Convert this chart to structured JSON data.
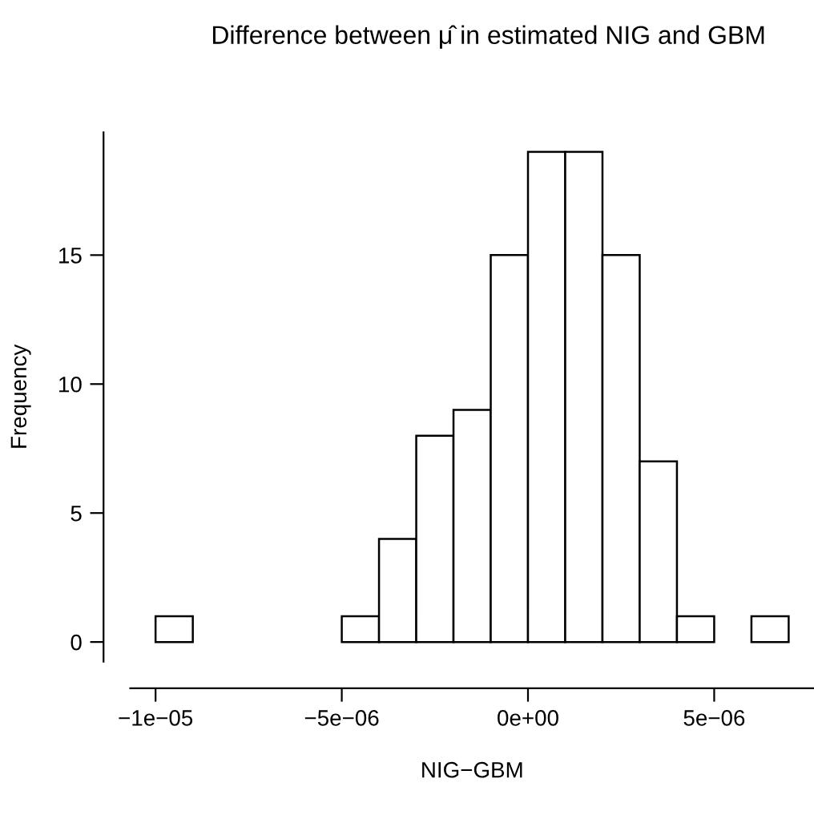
{
  "chart_data": {
    "type": "histogram",
    "title": "Difference between μ̂ in estimated NIG and GBM",
    "xlabel": "NIG−GBM",
    "ylabel": "Frequency",
    "bins": [
      -1e-05,
      -9e-06,
      -8e-06,
      -7e-06,
      -6e-06,
      -5e-06,
      -4e-06,
      -3e-06,
      -2e-06,
      -1e-06,
      0,
      1e-06,
      2e-06,
      3e-06,
      4e-06,
      5e-06,
      6e-06,
      7e-06
    ],
    "values": [
      1,
      0,
      0,
      0,
      0,
      1,
      4,
      8,
      9,
      15,
      19,
      19,
      15,
      7,
      1,
      0,
      1
    ],
    "color": "#ffffff",
    "xlim": [
      -1.068e-05,
      7.68e-06
    ],
    "ylim": [
      -0.76,
      19.76
    ],
    "xticks": [
      {
        "value": -1e-05,
        "label": "−1e−05"
      },
      {
        "value": -5e-06,
        "label": "−5e−06"
      },
      {
        "value": 0,
        "label": "0e+00"
      },
      {
        "value": 5e-06,
        "label": "5e−06"
      }
    ],
    "yticks": [
      0,
      5,
      10,
      15
    ],
    "grid": false
  }
}
